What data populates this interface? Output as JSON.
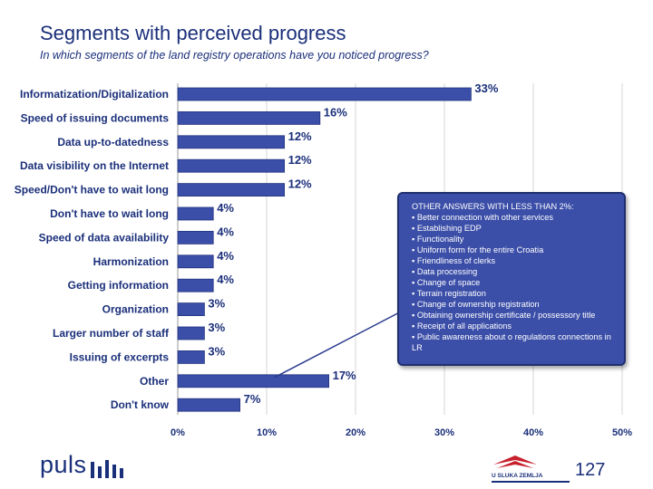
{
  "title": "Segments with perceived progress",
  "subtitle": "In which segments of the land registry operations have you noticed progress?",
  "chart_data": {
    "type": "bar",
    "orientation": "horizontal",
    "categories": [
      "Informatization/Digitalization",
      "Speed of issuing documents",
      "Data up-to-datedness",
      "Data visibility on the Internet",
      "Speed/Don't have to wait long",
      "Don't have to wait long",
      "Speed of data availability",
      "Harmonization",
      "Getting information",
      "Organization",
      "Larger number of staff",
      "Issuing of excerpts",
      "Other",
      "Don't know"
    ],
    "values": [
      33,
      16,
      12,
      12,
      12,
      4,
      4,
      4,
      4,
      3,
      3,
      3,
      17,
      7
    ],
    "value_labels": [
      "33%",
      "16%",
      "12%",
      "12%",
      "12%",
      "4%",
      "4%",
      "4%",
      "4%",
      "3%",
      "3%",
      "3%",
      "17%",
      "7%"
    ],
    "xlim": [
      0,
      50
    ],
    "xticks": [
      0,
      10,
      20,
      30,
      40,
      50
    ],
    "xtick_labels": [
      "0%",
      "10%",
      "20%",
      "30%",
      "40%",
      "50%"
    ],
    "bar_color": "#3b4ea8",
    "grid": true
  },
  "callout": {
    "title": "OTHER ANSWERS WITH LESS THAN 2%:",
    "items": [
      "Better connection with other services",
      "Establishing EDP",
      "Functionality",
      "Uniform form for the entire Croatia",
      "Friendliness of clerks",
      "Data processing",
      "Change of space",
      "Terrain registration",
      "Change of ownership registration",
      "Obtaining ownership certificate / possessory title",
      "Receipt of all applications",
      "Public awareness about o regulations connections in LR"
    ],
    "points_to": "Other"
  },
  "footer": {
    "logo_text": "puls",
    "partner_logo_text": "U SLUKA ZEMLJA",
    "page_number": "127"
  },
  "colors": {
    "text": "#1a2f7a",
    "bar": "#3b4ea8",
    "callout_bg": "#3b4ea8"
  }
}
